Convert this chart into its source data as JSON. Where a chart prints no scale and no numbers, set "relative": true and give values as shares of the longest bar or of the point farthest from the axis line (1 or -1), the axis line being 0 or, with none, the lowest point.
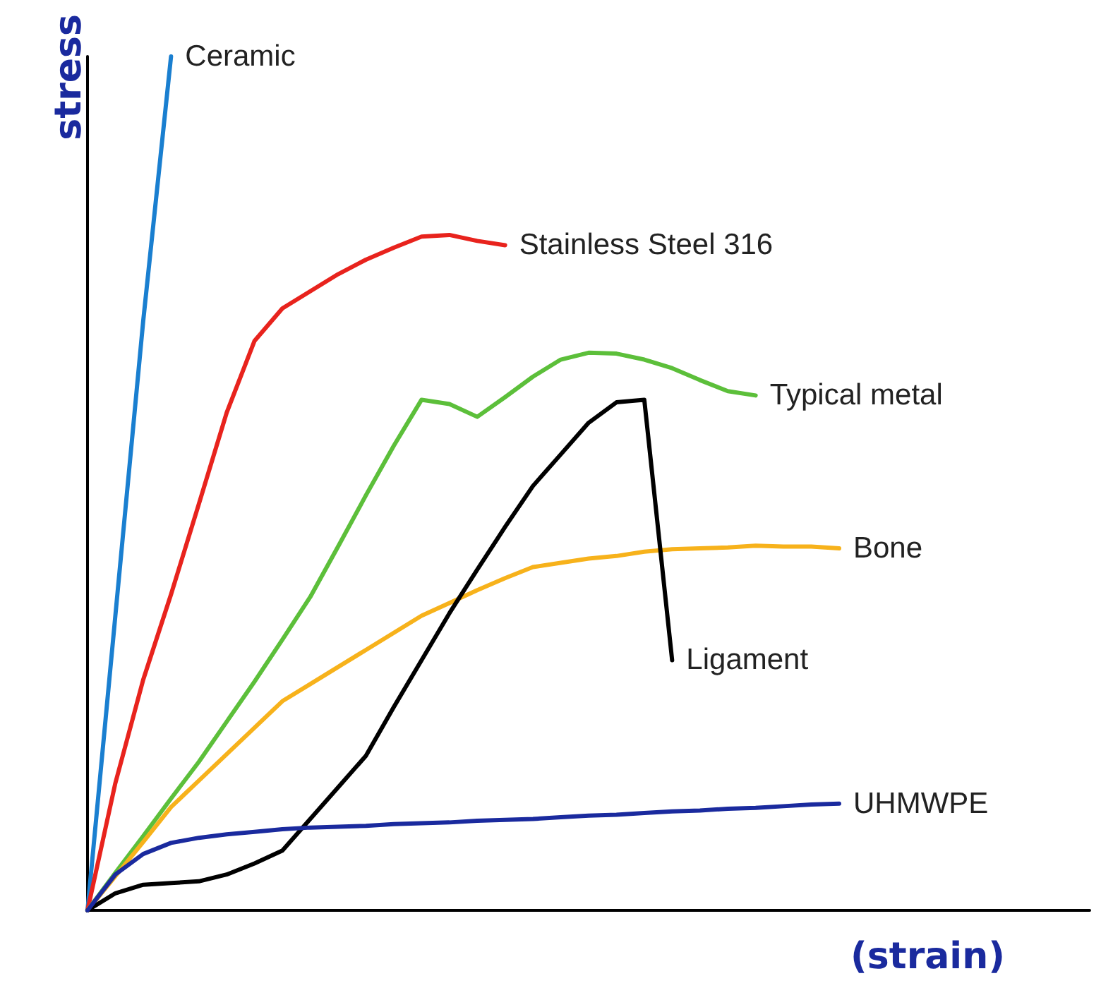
{
  "chart_data": {
    "type": "line",
    "relative": true,
    "xlabel": "(strain)",
    "ylabel": "stress",
    "grid": false,
    "legend": false,
    "marker": "none",
    "line_style": "solid",
    "categories": [
      null,
      null,
      null,
      null,
      null,
      null,
      null,
      null,
      null,
      null,
      null,
      null,
      null,
      null,
      null,
      null,
      null,
      null,
      null,
      null,
      null,
      null,
      null,
      null,
      null,
      null,
      null,
      null,
      null,
      null,
      null,
      null,
      null,
      null,
      null,
      null,
      null
    ],
    "series": [
      {
        "name": "Ceramic",
        "color": "#1a7fd0",
        "values": [
          0,
          0.345,
          0.69,
          1,
          null,
          null,
          null,
          null,
          null,
          null,
          null,
          null,
          null,
          null,
          null,
          null,
          null,
          null,
          null,
          null,
          null,
          null,
          null,
          null,
          null,
          null,
          null,
          null,
          null,
          null,
          null,
          null,
          null,
          null,
          null,
          null,
          null
        ]
      },
      {
        "name": "Stainless Steel 316",
        "color": "#e8231d",
        "values": [
          0,
          0.149,
          0.27,
          0.37,
          0.476,
          0.583,
          0.667,
          0.705,
          0.725,
          0.745,
          0.762,
          0.776,
          0.789,
          0.791,
          0.784,
          0.779,
          null,
          null,
          null,
          null,
          null,
          null,
          null,
          null,
          null,
          null,
          null,
          null,
          null,
          null,
          null,
          null,
          null,
          null,
          null,
          null,
          null
        ]
      },
      {
        "name": "Typical metal",
        "color": "#5cbf3a",
        "values": [
          0,
          0.044,
          0.087,
          0.131,
          0.174,
          0.221,
          0.268,
          0.317,
          0.367,
          0.426,
          0.486,
          0.544,
          0.598,
          0.593,
          0.578,
          0.601,
          0.625,
          0.645,
          0.653,
          0.652,
          0.645,
          0.635,
          0.621,
          0.608,
          0.603,
          null,
          null,
          null,
          null,
          null,
          null,
          null,
          null,
          null,
          null,
          null,
          null
        ]
      },
      {
        "name": "Bone",
        "color": "#f7b21b",
        "values": [
          0,
          0.04,
          0.08,
          0.121,
          0.152,
          0.183,
          0.214,
          0.245,
          0.265,
          0.285,
          0.305,
          0.325,
          0.345,
          0.36,
          0.375,
          0.389,
          0.402,
          0.407,
          0.412,
          0.415,
          0.42,
          0.423,
          0.424,
          0.425,
          0.427,
          0.426,
          0.426,
          0.424,
          null,
          null,
          null,
          null,
          null,
          null,
          null,
          null,
          null
        ]
      },
      {
        "name": "Ligament",
        "color": "#000000",
        "values": [
          0,
          0.02,
          0.03,
          0.032,
          0.034,
          0.042,
          0.055,
          0.07,
          0.107,
          0.144,
          0.181,
          0.238,
          0.293,
          0.348,
          0.399,
          0.449,
          0.497,
          0.534,
          0.571,
          0.595,
          0.598,
          0.293,
          null,
          null,
          null,
          null,
          null,
          null,
          null,
          null,
          null,
          null,
          null,
          null,
          null,
          null,
          null
        ]
      },
      {
        "name": "UHMWPE",
        "color": "#1a2a9e",
        "values": [
          0,
          0.042,
          0.066,
          0.079,
          0.085,
          0.089,
          0.092,
          0.095,
          0.097,
          0.098,
          0.099,
          0.101,
          0.102,
          0.103,
          0.105,
          0.106,
          0.107,
          0.109,
          0.111,
          0.112,
          0.114,
          0.116,
          0.117,
          0.119,
          0.12,
          0.122,
          0.124,
          0.125,
          null,
          null,
          null,
          null,
          null,
          null,
          null,
          null,
          null
        ]
      }
    ]
  }
}
